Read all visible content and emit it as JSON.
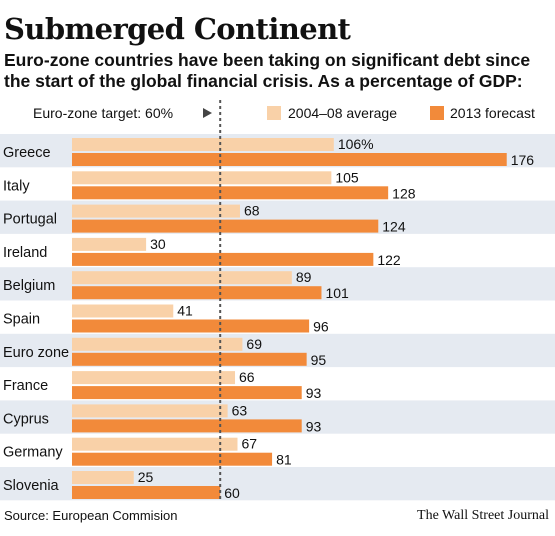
{
  "header": {
    "title": "Submerged Continent",
    "subtitle": "Euro-zone countries have been taking on significant debt since the start of the global financial crisis. As a percentage of GDP:"
  },
  "footer": {
    "source": "Source: European Commision",
    "credit": "The Wall Street Journal"
  },
  "colors": {
    "series_2004_08": "#f9d1a8",
    "series_2013": "#f28a3a",
    "band": "#e5eaf1",
    "reference_line": "#555555"
  },
  "chart_data": {
    "type": "bar",
    "orientation": "horizontal",
    "grid": false,
    "legend_position": "top",
    "title": "Submerged Continent",
    "subtitle": "Euro-zone countries have been taking on significant debt since the start of the global financial crisis. As a percentage of GDP:",
    "categories": [
      "Greece",
      "Italy",
      "Portugal",
      "Ireland",
      "Belgium",
      "Spain",
      "Euro zone",
      "France",
      "Cyprus",
      "Germany",
      "Slovenia"
    ],
    "series": [
      {
        "name": "2004–08 average",
        "values": [
          106,
          105,
          68,
          30,
          89,
          41,
          69,
          66,
          63,
          67,
          25
        ],
        "labels": [
          "106%",
          "105",
          "68",
          "30",
          "89",
          "41",
          "69",
          "66",
          "63",
          "67",
          "25"
        ]
      },
      {
        "name": "2013 forecast",
        "values": [
          176,
          128,
          124,
          122,
          101,
          96,
          95,
          93,
          93,
          81,
          60
        ],
        "labels": [
          "176",
          "128",
          "124",
          "122",
          "101",
          "96",
          "95",
          "93",
          "93",
          "81",
          "60"
        ]
      }
    ],
    "xlim": [
      0,
      180
    ],
    "reference_line": {
      "value": 60,
      "label": "Euro-zone target: 60%"
    }
  }
}
